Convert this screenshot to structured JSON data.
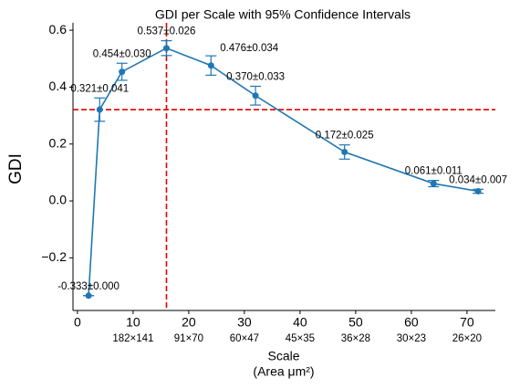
{
  "chart_data": {
    "type": "line",
    "title": "GDI per Scale with 95% Confidence Intervals",
    "xlabel": "Scale",
    "xlabel_sub": "(Area μm²)",
    "ylabel": "GDI",
    "x": [
      2,
      4,
      8,
      16,
      24,
      32,
      48,
      64,
      72
    ],
    "series": [
      {
        "name": "GDI",
        "color": "#1f77b4",
        "values": [
          -0.333,
          0.321,
          0.454,
          0.537,
          0.476,
          0.37,
          0.172,
          0.061,
          0.034
        ],
        "errors": [
          0.0,
          0.041,
          0.03,
          0.026,
          0.034,
          0.033,
          0.025,
          0.011,
          0.007
        ],
        "value_labels": [
          "-0.333±0.000",
          "0.321±0.041",
          "0.454±0.030",
          "0.537±0.026",
          "0.476±0.034",
          "0.370±0.033",
          "0.172±0.025",
          "0.061±0.011",
          "0.034±0.007"
        ]
      }
    ],
    "xlim": [
      -0.8,
      75.1
    ],
    "ylim": [
      -0.385,
      0.626
    ],
    "xticks": [
      0,
      10,
      20,
      30,
      40,
      50,
      60,
      70
    ],
    "area_ticks": [
      {
        "value": 10,
        "label": "182×141"
      },
      {
        "value": 20,
        "label": "91×70"
      },
      {
        "value": 30,
        "label": "60×47"
      },
      {
        "value": 40,
        "label": "45×35"
      },
      {
        "value": 50,
        "label": "36×28"
      },
      {
        "value": 60,
        "label": "30×23"
      },
      {
        "value": 70,
        "label": "26×20"
      }
    ],
    "yticks": [
      {
        "value": -0.2,
        "label": "−0.2"
      },
      {
        "value": 0.0,
        "label": "0.0"
      },
      0.2,
      0.4,
      0.6
    ],
    "hline": 0.321,
    "vline": 16,
    "ref_color": "#e00000",
    "grid": false
  }
}
